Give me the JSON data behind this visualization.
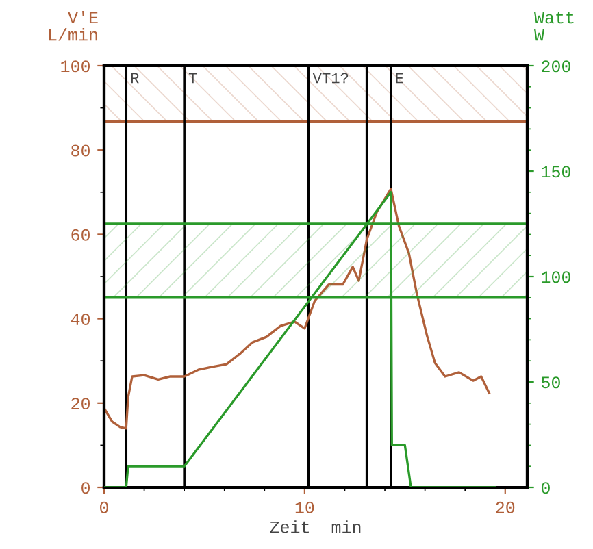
{
  "chart_data": {
    "type": "line",
    "xlabel": "Zeit  min",
    "ylabel": "V'E\nL/min",
    "y2label": "Watt\nW",
    "xlim": [
      0,
      21.1
    ],
    "xticks": [
      0,
      10,
      20
    ],
    "ylim": [
      0,
      100
    ],
    "yticks": [
      0,
      20,
      40,
      60,
      80,
      100
    ],
    "y2lim": [
      0,
      200
    ],
    "y2ticks": [
      0,
      50,
      100,
      150,
      200
    ],
    "grid": false,
    "legend": false,
    "marker": "none",
    "line_style": "solid",
    "series": [
      {
        "color": "#b0603a",
        "x": [
          0,
          0.4,
          0.8,
          1.1,
          1.2,
          1.4,
          2.0,
          2.7,
          3.3,
          4.0,
          4.7,
          5.4,
          6.1,
          6.8,
          7.4,
          8.1,
          8.8,
          9.5,
          10.0,
          10.5,
          11.2,
          11.9,
          12.4,
          12.7,
          13.1,
          13.6,
          14.3,
          14.7,
          15.2,
          15.6,
          16.1,
          16.5,
          17.0,
          17.7,
          18.4,
          18.8,
          19.2
        ],
        "values": [
          18.8,
          15.6,
          14.3,
          14,
          21.4,
          26.3,
          26.6,
          25.6,
          26.3,
          26.3,
          27.9,
          28.6,
          29.2,
          31.8,
          34.4,
          35.7,
          38.3,
          39.3,
          37.7,
          44.2,
          48.1,
          48.1,
          52.3,
          49,
          58.8,
          65.3,
          70.8,
          62,
          55.5,
          45.8,
          36,
          29.5,
          26.3,
          27.3,
          25.3,
          26.3,
          22.4
        ]
      },
      {
        "color": "#2a9a2a",
        "axis": "y2",
        "x": [
          0,
          1.1,
          1.2,
          4.0,
          14.3,
          14.35,
          15.0,
          15.3,
          19.5
        ],
        "values": [
          0,
          0,
          10,
          10,
          140,
          20,
          20,
          0,
          0
        ]
      }
    ],
    "ref_lines": [
      {
        "axis": "x",
        "value": 1.1,
        "label": "R",
        "color": "#000000"
      },
      {
        "axis": "x",
        "value": 4.0,
        "label": "T",
        "color": "#000000"
      },
      {
        "axis": "x",
        "value": 10.2,
        "label": "VT1?",
        "color": "#000000"
      },
      {
        "axis": "x",
        "value": 13.1,
        "label": null,
        "color": "#000000"
      },
      {
        "axis": "x",
        "value": 14.3,
        "label": "E",
        "color": "#000000"
      },
      {
        "axis": "y",
        "value": 86.7,
        "label": null,
        "color": "#b0603a"
      },
      {
        "axis": "y2",
        "value": 90,
        "label": null,
        "color": "#2a9a2a"
      },
      {
        "axis": "y2",
        "value": 125,
        "label": null,
        "color": "#2a9a2a"
      }
    ],
    "bands": [
      {
        "axis": "y",
        "from": 86.7,
        "to": 100,
        "label": null,
        "color": "#b0603a"
      },
      {
        "axis": "y2",
        "from": 90,
        "to": 125,
        "label": null,
        "color": "#2a9a2a"
      }
    ]
  }
}
